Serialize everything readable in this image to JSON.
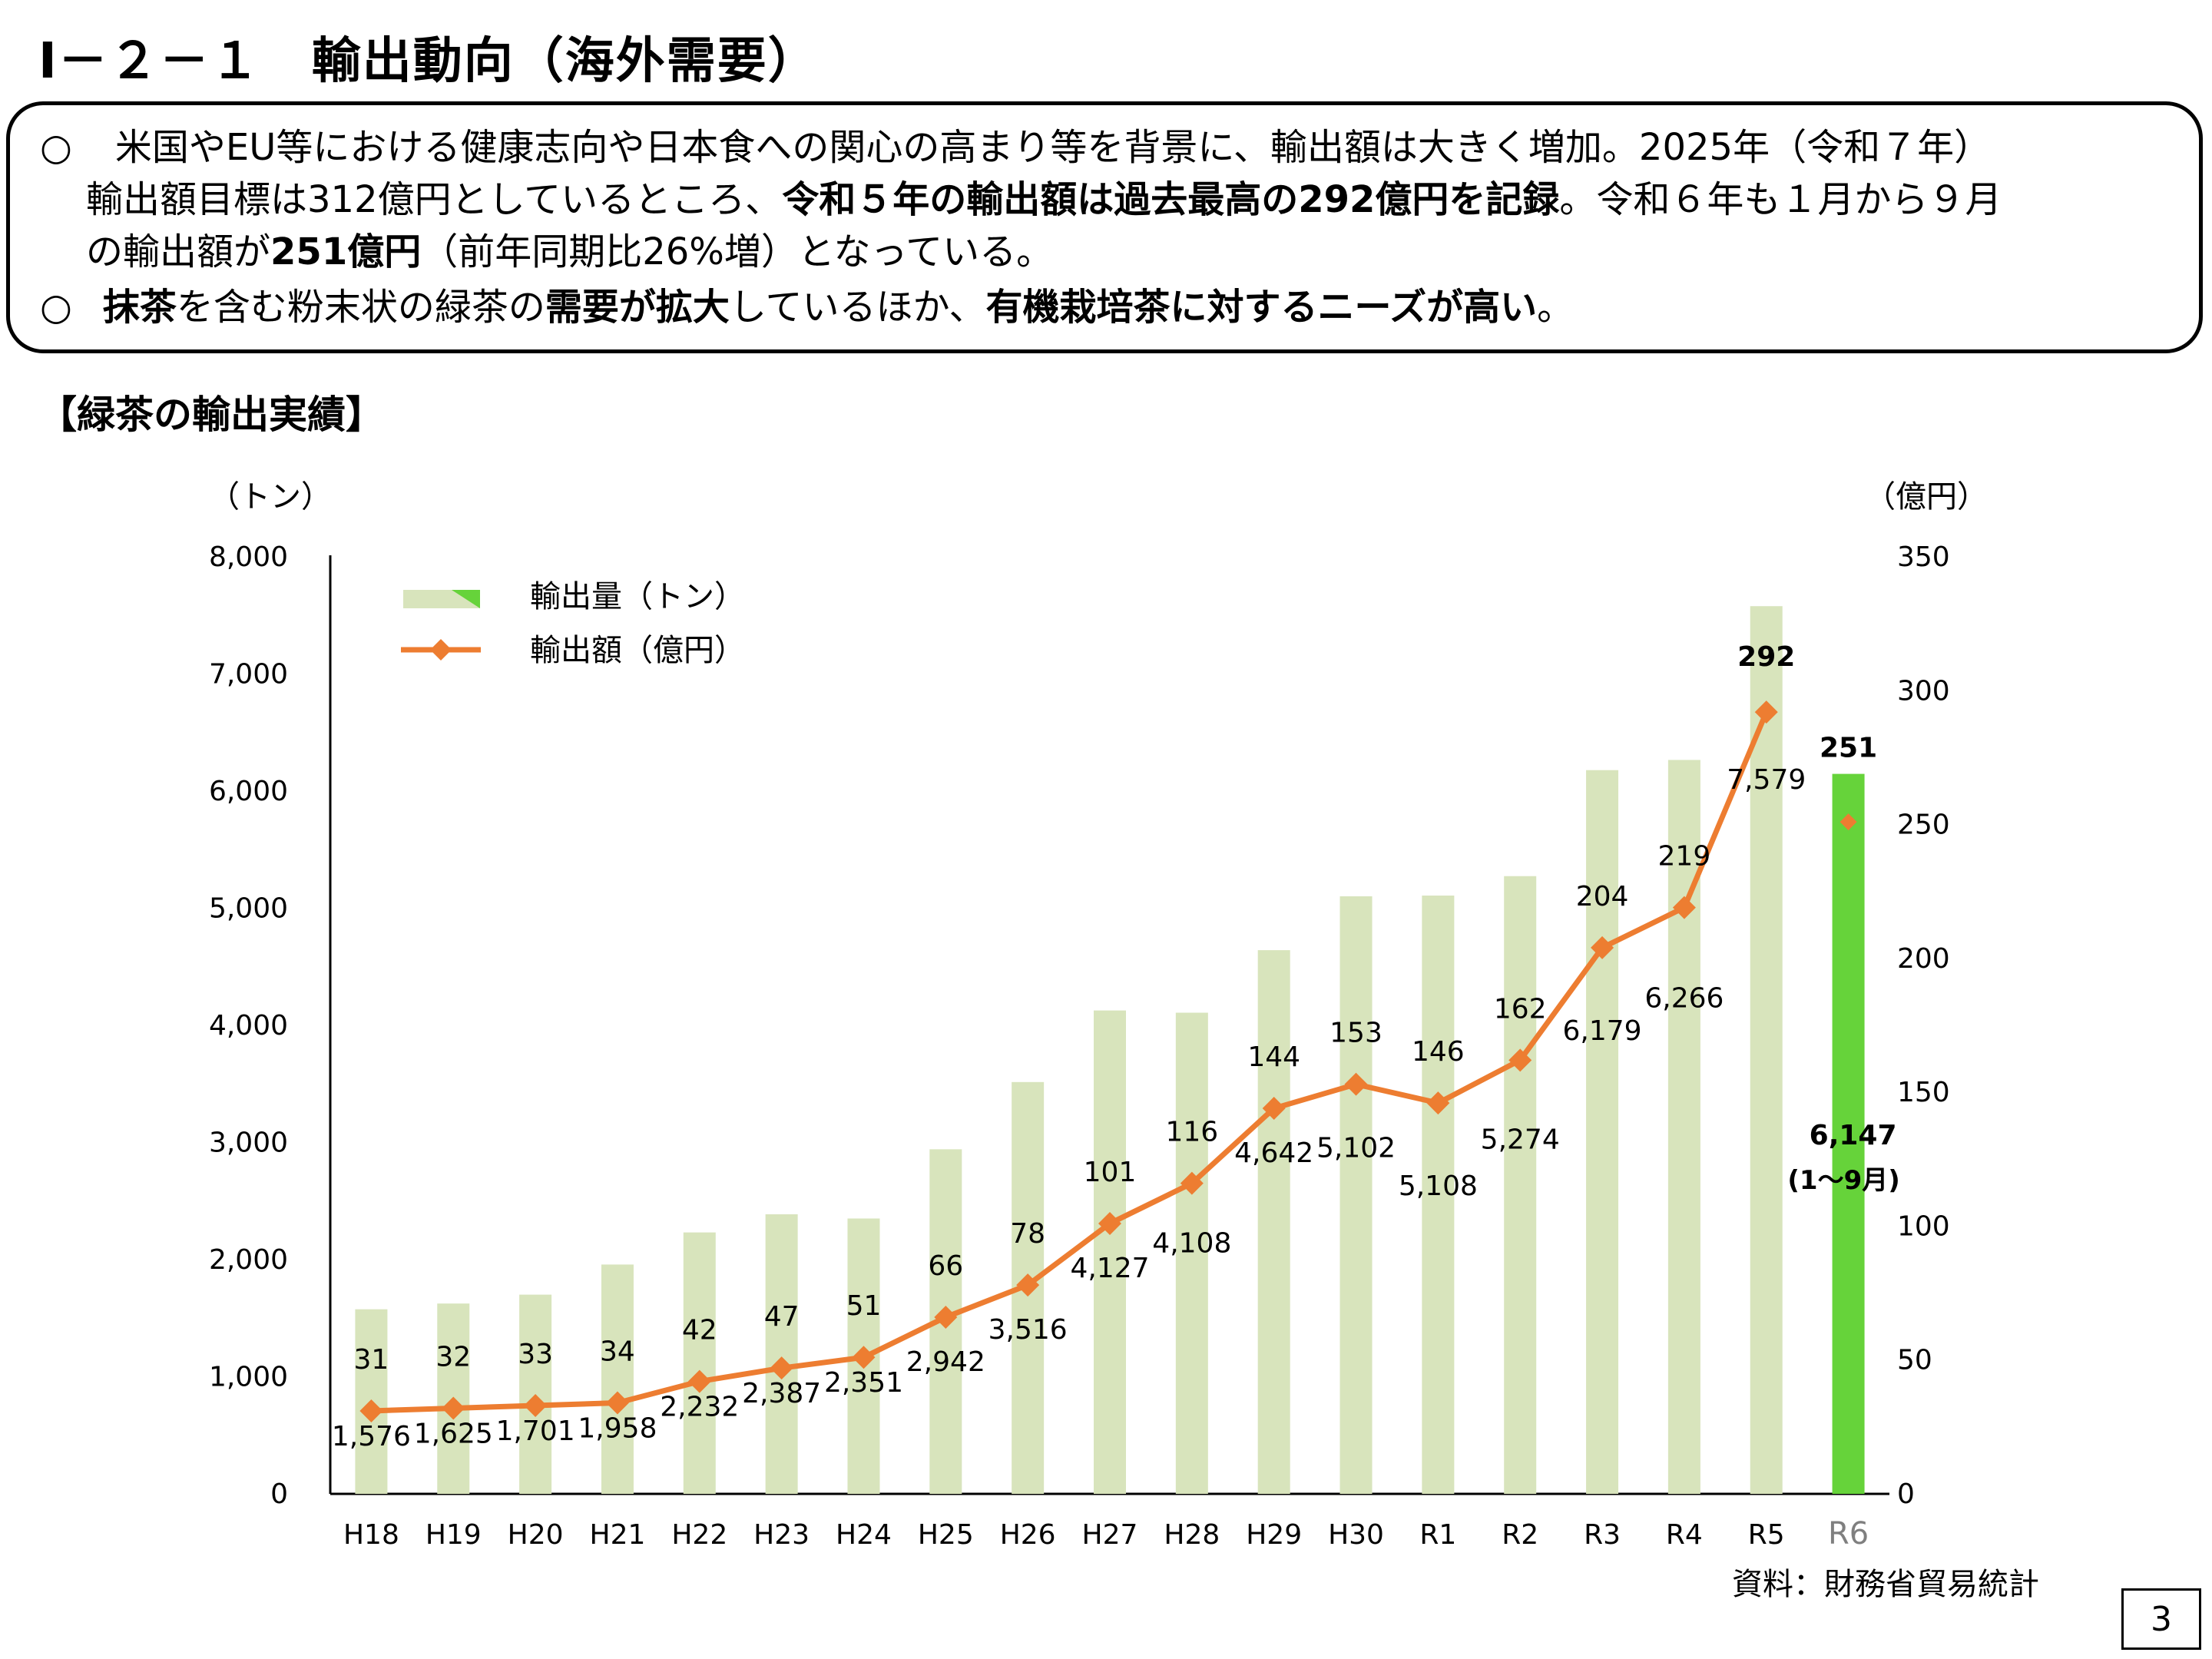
{
  "heading": "Ⅰ－２－１　輸出動向（海外需要）",
  "summary": {
    "bullet": "○",
    "b1_l1": "米国やEU等における健康志向や日本食への関心の高まり等を背景に、輸出額は大きく増加。2025年（令和７年）",
    "b1_l2_a": "輸出額目標は312億円としているところ、",
    "b1_l2_b": "令和５年の輸出額は過去最高の292億円を記録",
    "b1_l2_c": "。令和６年も１月から９月",
    "b1_l3_a": "の輸出額が",
    "b1_l3_b": "251億円",
    "b1_l3_c": "（前年同期比26%増）となっている。",
    "b2_a": "抹茶",
    "b2_b": "を含む粉末状の緑茶の",
    "b2_c": "需要が拡大",
    "b2_d": "しているほか、",
    "b2_e": "有機栽培茶に対するニーズが高い",
    "b2_f": "。"
  },
  "section_title": "【緑茶の輸出実績】",
  "source": "資料：財務省貿易統計",
  "page_number": "3",
  "chart_data": {
    "type": "bar+line",
    "categories": [
      "H18",
      "H19",
      "H20",
      "H21",
      "H22",
      "H23",
      "H24",
      "H25",
      "H26",
      "H27",
      "H28",
      "H29",
      "H30",
      "R1",
      "R2",
      "R3",
      "R4",
      "R5",
      "R6"
    ],
    "series": [
      {
        "name": "輸出量（トン）",
        "type": "bar",
        "axis": "left",
        "values": [
          1576,
          1625,
          1701,
          1958,
          2232,
          2387,
          2351,
          2942,
          3516,
          4127,
          4108,
          4642,
          5102,
          5108,
          5274,
          6179,
          6266,
          7579,
          6147
        ],
        "labels": [
          "1,576",
          "1,625",
          "1,701",
          "1,958",
          "2,232",
          "2,387",
          "2,351",
          "2,942",
          "3,516",
          "4,127",
          "4,108",
          "4,642",
          "5,102",
          "5,108",
          "5,274",
          "6,179",
          "6,266",
          "7,579",
          "6,147"
        ]
      },
      {
        "name": "輸出額（億円）",
        "type": "line",
        "axis": "right",
        "values": [
          31,
          32,
          33,
          34,
          42,
          47,
          51,
          66,
          78,
          101,
          116,
          144,
          153,
          146,
          162,
          204,
          219,
          292,
          251
        ],
        "labels": [
          "31",
          "32",
          "33",
          "34",
          "42",
          "47",
          "51",
          "66",
          "78",
          "101",
          "116",
          "144",
          "153",
          "146",
          "162",
          "204",
          "219",
          "292",
          "251"
        ]
      }
    ],
    "left_axis": {
      "unit_label": "（トン）",
      "range": [
        0,
        8000
      ],
      "ticks": [
        "0",
        "1,000",
        "2,000",
        "3,000",
        "4,000",
        "5,000",
        "6,000",
        "7,000",
        "8,000"
      ]
    },
    "right_axis": {
      "unit_label": "（億円）",
      "range": [
        0,
        350
      ],
      "ticks": [
        "0",
        "50",
        "100",
        "150",
        "200",
        "250",
        "300",
        "350"
      ]
    },
    "r6_note": "(1～9月)",
    "legend_position": "top-left",
    "colors": {
      "bar": "#d8e4bc",
      "bar_highlight": "#66d33a",
      "line": "#ed7d31",
      "marker": "#ed7d31",
      "muted_category": "#7f7f7f"
    }
  }
}
